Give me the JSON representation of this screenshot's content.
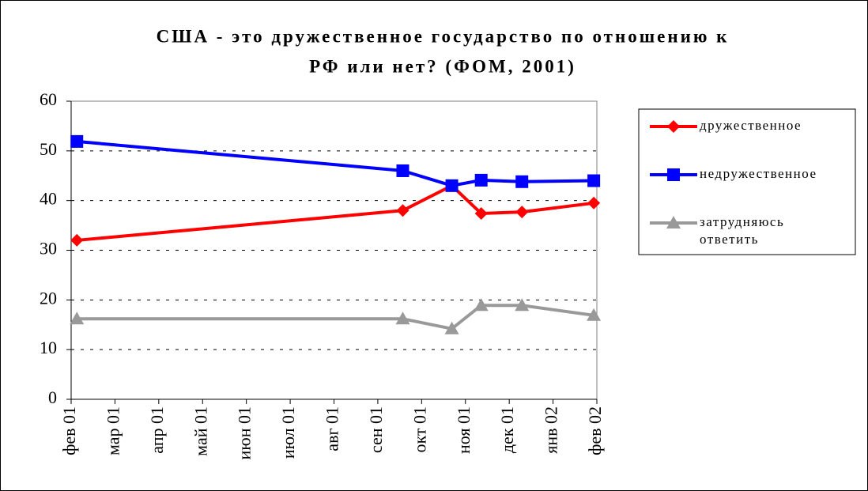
{
  "chart_data": {
    "type": "line",
    "title": [
      "США - это дружественное государство по отношению к",
      "РФ или нет? (ФОМ, 2001)"
    ],
    "x": [
      0.13,
      7.57,
      8.69,
      9.36,
      10.29,
      11.93
    ],
    "xlim": [
      0,
      12
    ],
    "xticks": [
      {
        "value": 0,
        "label": "фев 01"
      },
      {
        "value": 1,
        "label": "мар 01"
      },
      {
        "value": 2,
        "label": "апр 01"
      },
      {
        "value": 3,
        "label": "май 01"
      },
      {
        "value": 4,
        "label": "июн 01"
      },
      {
        "value": 5,
        "label": "июл 01"
      },
      {
        "value": 6,
        "label": "авг 01"
      },
      {
        "value": 7,
        "label": "сен 01"
      },
      {
        "value": 8,
        "label": "окт 01"
      },
      {
        "value": 9,
        "label": "ноя 01"
      },
      {
        "value": 10,
        "label": "дек 01"
      },
      {
        "value": 11,
        "label": "янв 02"
      },
      {
        "value": 12,
        "label": "фев 02"
      }
    ],
    "ylim": [
      0,
      60
    ],
    "yticks": [
      0,
      10,
      20,
      30,
      40,
      50,
      60
    ],
    "grid": true,
    "legend": "right",
    "series": [
      {
        "name": "дружественное",
        "color": "#ff0000",
        "marker": "diamond",
        "values": [
          32,
          38,
          43,
          37.4,
          37.7,
          39.5
        ]
      },
      {
        "name": "недружественное",
        "color": "#0000ff",
        "marker": "square",
        "values": [
          51.9,
          46,
          43,
          44.1,
          43.8,
          44
        ]
      },
      {
        "name": "затрудняюсь ответить",
        "color": "#999999",
        "marker": "triangle",
        "values": [
          16.2,
          16.2,
          14.2,
          18.9,
          18.9,
          16.9
        ]
      }
    ]
  }
}
